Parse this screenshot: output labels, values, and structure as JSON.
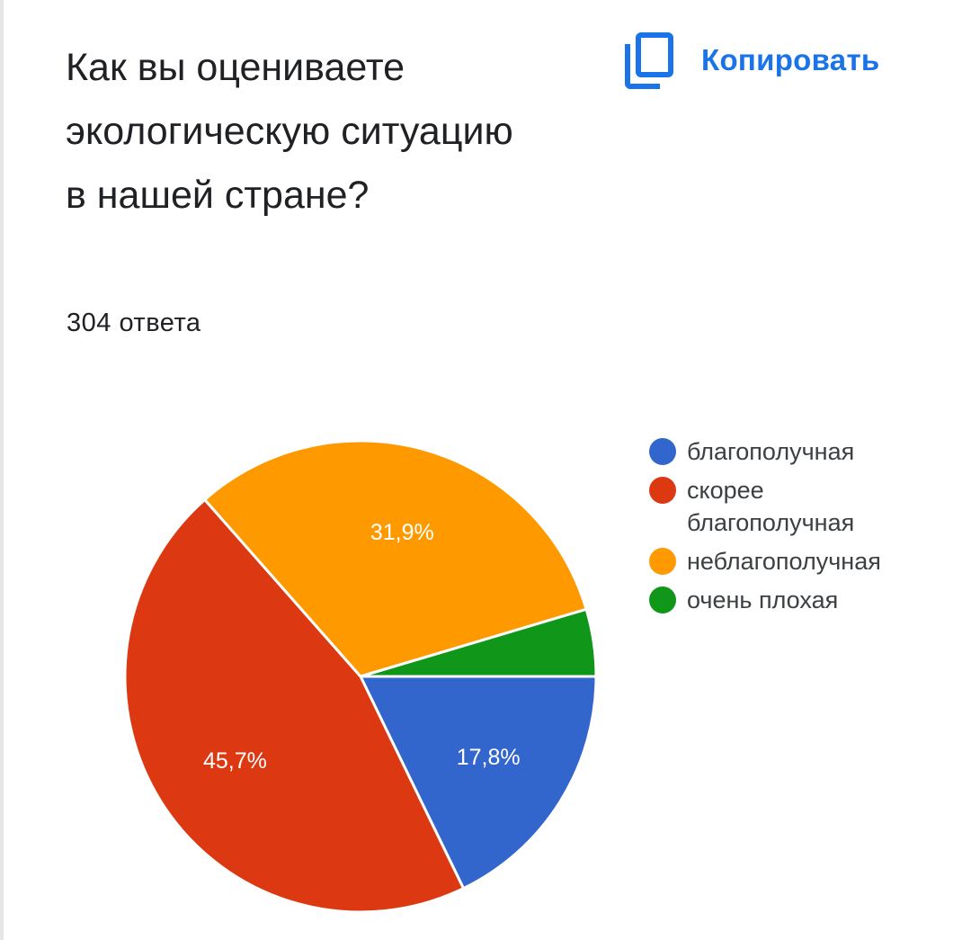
{
  "question": "Как вы оцениваете экологическую ситуацию в нашей стране?",
  "responses_label": "304 ответа",
  "copy_button": {
    "label": "Копировать",
    "icon": "copy-icon",
    "color": "#1a73e8"
  },
  "chart_data": {
    "type": "pie",
    "title": "",
    "series": [
      {
        "name": "благополучная",
        "value": 17.8,
        "label": "17,8%",
        "color": "#3366cc"
      },
      {
        "name": "скорее благополучная",
        "value": 45.7,
        "label": "45,7%",
        "color": "#dc3912"
      },
      {
        "name": "неблагополучная",
        "value": 31.9,
        "label": "31,9%",
        "color": "#ff9900"
      },
      {
        "name": "очень плохая",
        "value": 4.6,
        "label": "",
        "color": "#109618"
      }
    ],
    "start_direction": "east",
    "order": "clockwise",
    "legend_position": "right"
  }
}
